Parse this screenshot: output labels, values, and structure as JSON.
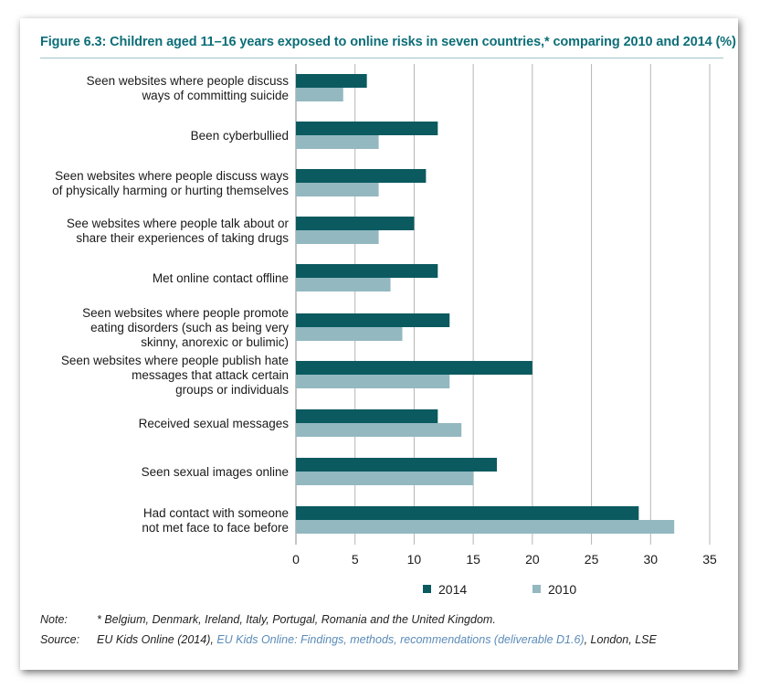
{
  "figure": {
    "title": "Figure 6.3:  Children aged 11–16 years exposed to online risks in seven countries,* comparing 2010 and 2014 (%)"
  },
  "colors": {
    "series_2014": "#0b5a60",
    "series_2010": "#93b8c0",
    "title": "#0d6e78",
    "grid": "#b5b5b5"
  },
  "chart_data": {
    "type": "bar",
    "orientation": "horizontal",
    "categories": [
      [
        "Seen websites where people discuss",
        "ways of committing suicide"
      ],
      [
        "Been cyberbullied"
      ],
      [
        "Seen websites where people discuss ways",
        "of physically harming or hurting themselves"
      ],
      [
        "See websites where people talk about or",
        "share their experiences of taking drugs"
      ],
      [
        "Met online contact offline"
      ],
      [
        "Seen websites where people promote",
        "eating disorders (such as being very",
        "skinny, anorexic or bulimic)"
      ],
      [
        "Seen websites where people publish hate",
        "messages that attack certain",
        "groups or individuals"
      ],
      [
        "Received sexual messages"
      ],
      [
        "Seen sexual images online"
      ],
      [
        "Had contact with someone",
        "not met face to face before"
      ]
    ],
    "series": [
      {
        "name": "2014",
        "values": [
          6,
          12,
          11,
          10,
          12,
          13,
          20,
          12,
          17,
          29
        ]
      },
      {
        "name": "2010",
        "values": [
          4,
          7,
          7,
          7,
          8,
          9,
          13,
          14,
          15,
          32
        ]
      }
    ],
    "xlim": [
      0,
      35
    ],
    "xticks": [
      "0",
      "5",
      "10",
      "15",
      "20",
      "25",
      "30",
      "35"
    ],
    "grid": true,
    "legend": "bottom"
  },
  "notes": {
    "note_key": "Note:",
    "note_text": "* Belgium, Denmark, Ireland, Italy, Portugal, Romania and the United Kingdom.",
    "source_key": "Source:",
    "source_text_1": "EU Kids Online (2014), ",
    "source_link": "EU Kids Online: Findings, methods, recommendations (deliverable D1.6)",
    "source_text_2": ", London, LSE"
  }
}
